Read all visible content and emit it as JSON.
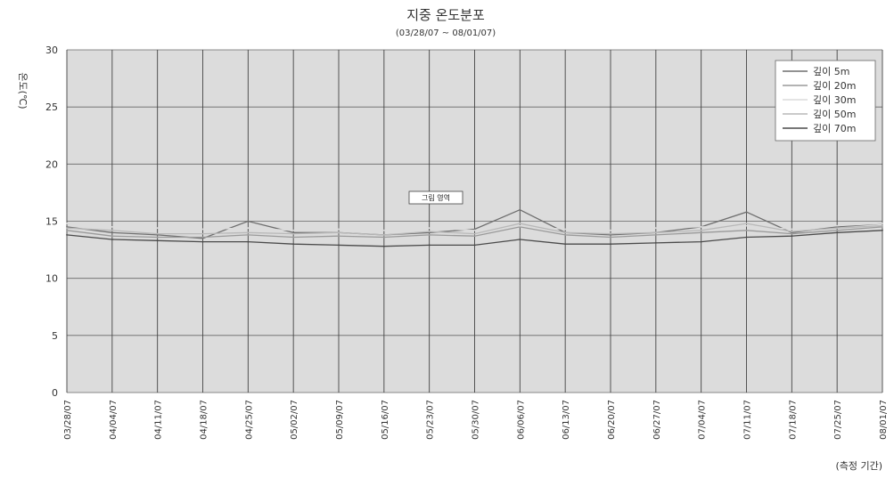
{
  "chart_data": {
    "type": "line",
    "title": "지중 온도분포",
    "subtitle": "(03/28/07 ~ 08/01/07)",
    "ylabel": "온도(℃)",
    "xlabel": "(측정 기간)",
    "ylim": [
      0,
      30
    ],
    "yticks": [
      0,
      5,
      10,
      15,
      20,
      25,
      30
    ],
    "grid": true,
    "legend_position": "top-right",
    "annotation": "그림 영역",
    "categories": [
      "03/28/07",
      "04/04/07",
      "04/11/07",
      "04/18/07",
      "04/25/07",
      "05/02/07",
      "05/09/07",
      "05/16/07",
      "05/23/07",
      "05/30/07",
      "06/06/07",
      "06/13/07",
      "06/20/07",
      "06/27/07",
      "07/04/07",
      "07/11/07",
      "07/18/07",
      "07/25/07",
      "08/01/07"
    ],
    "series": [
      {
        "name": "깊이 5m",
        "color": "#6e6e6e",
        "values": [
          14.5,
          14.0,
          13.8,
          13.5,
          15.0,
          14.0,
          14.0,
          13.8,
          14.0,
          14.3,
          16.0,
          14.0,
          13.8,
          14.0,
          14.5,
          15.8,
          14.0,
          14.5,
          14.8
        ]
      },
      {
        "name": "깊이 20m",
        "color": "#9a9a9a",
        "values": [
          14.2,
          13.7,
          13.6,
          13.6,
          13.8,
          13.6,
          13.7,
          13.6,
          13.8,
          13.7,
          14.5,
          13.8,
          13.6,
          13.8,
          14.0,
          14.2,
          13.9,
          14.2,
          14.5
        ]
      },
      {
        "name": "깊이 30m",
        "color": "#dcdcdc",
        "values": [
          14.8,
          14.5,
          14.4,
          14.3,
          14.4,
          14.2,
          14.3,
          14.2,
          14.4,
          14.2,
          14.6,
          14.3,
          14.2,
          14.4,
          14.5,
          14.6,
          14.3,
          14.6,
          14.8
        ]
      },
      {
        "name": "깊이 50m",
        "color": "#b8b8b8",
        "values": [
          14.4,
          14.2,
          13.9,
          13.9,
          14.0,
          13.9,
          14.0,
          13.8,
          14.1,
          13.9,
          14.8,
          14.0,
          13.9,
          14.0,
          14.2,
          14.8,
          14.1,
          14.4,
          14.6
        ]
      },
      {
        "name": "깊이 70m",
        "color": "#4a4a4a",
        "values": [
          13.8,
          13.4,
          13.3,
          13.2,
          13.2,
          13.0,
          12.9,
          12.8,
          12.9,
          12.9,
          13.4,
          13.0,
          13.0,
          13.1,
          13.2,
          13.6,
          13.7,
          14.0,
          14.2
        ]
      }
    ]
  }
}
